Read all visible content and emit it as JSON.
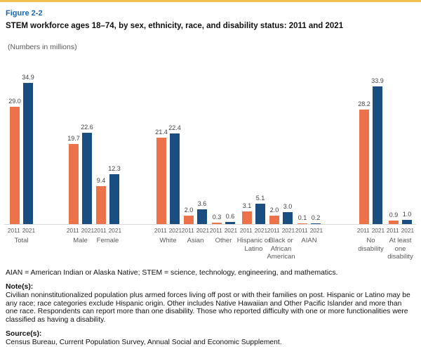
{
  "figure": {
    "label": "Figure 2-2",
    "title": "STEM workforce ages 18–74, by sex, ethnicity, race, and disability status: 2011 and 2021",
    "units_note": "(Numbers in millions)"
  },
  "chart_data": {
    "type": "bar",
    "title": "STEM workforce ages 18–74, by sex, ethnicity, race, and disability status: 2011 and 2021",
    "unit": "millions",
    "ylim": [
      0,
      38.6
    ],
    "grid": false,
    "legend_position": "none (years labeled under each bar)",
    "series": [
      {
        "name": "2011",
        "color": "#ec7249"
      },
      {
        "name": "2021",
        "color": "#1a4e80"
      }
    ],
    "categories": [
      "Total",
      "Male",
      "Female",
      "White",
      "Asian",
      "Other",
      "Hispanic or Latino",
      "Black or African American",
      "AIAN",
      "No disability",
      "At least one disability"
    ],
    "groups": [
      {
        "label": "Total",
        "v2011": 29.0,
        "v2021": 34.9
      },
      {
        "label": "Male",
        "v2011": 19.7,
        "v2021": 22.6
      },
      {
        "label": "Female",
        "v2011": 9.4,
        "v2021": 12.3
      },
      {
        "label": "White",
        "v2011": 21.4,
        "v2021": 22.4
      },
      {
        "label": "Asian",
        "v2011": 2.0,
        "v2021": 3.6
      },
      {
        "label": "Other",
        "v2011": 0.3,
        "v2021": 0.6
      },
      {
        "label": "Hispanic or Latino",
        "v2011": 3.1,
        "v2021": 5.1
      },
      {
        "label": "Black or African American",
        "v2011": 2.0,
        "v2021": 3.0
      },
      {
        "label": "AIAN",
        "v2011": 0.1,
        "v2021": 0.2
      },
      {
        "label": "No disability",
        "v2011": 28.2,
        "v2021": 33.9
      },
      {
        "label": "At least one disability",
        "v2011": 0.9,
        "v2021": 1.0
      }
    ]
  },
  "abbreviation_note": "AIAN = American Indian or Alaska Native; STEM = science, technology, engineering, and mathematics.",
  "notes": {
    "heading": "Note(s):",
    "body": "Civilian noninstitutionalized population plus armed forces living off post or with their families on post. Hispanic or Latino may be any race; race categories exclude Hispanic origin. Other includes Native Hawaiian and Other Pacific Islander and more than one race. Respondents can report more than one disability. Those who reported difficulty with one or more functionalities were classified as having a disability."
  },
  "source": {
    "heading": "Source(s):",
    "body": "Census Bureau, Current Population Survey, Annual Social and Economic Supplement."
  }
}
